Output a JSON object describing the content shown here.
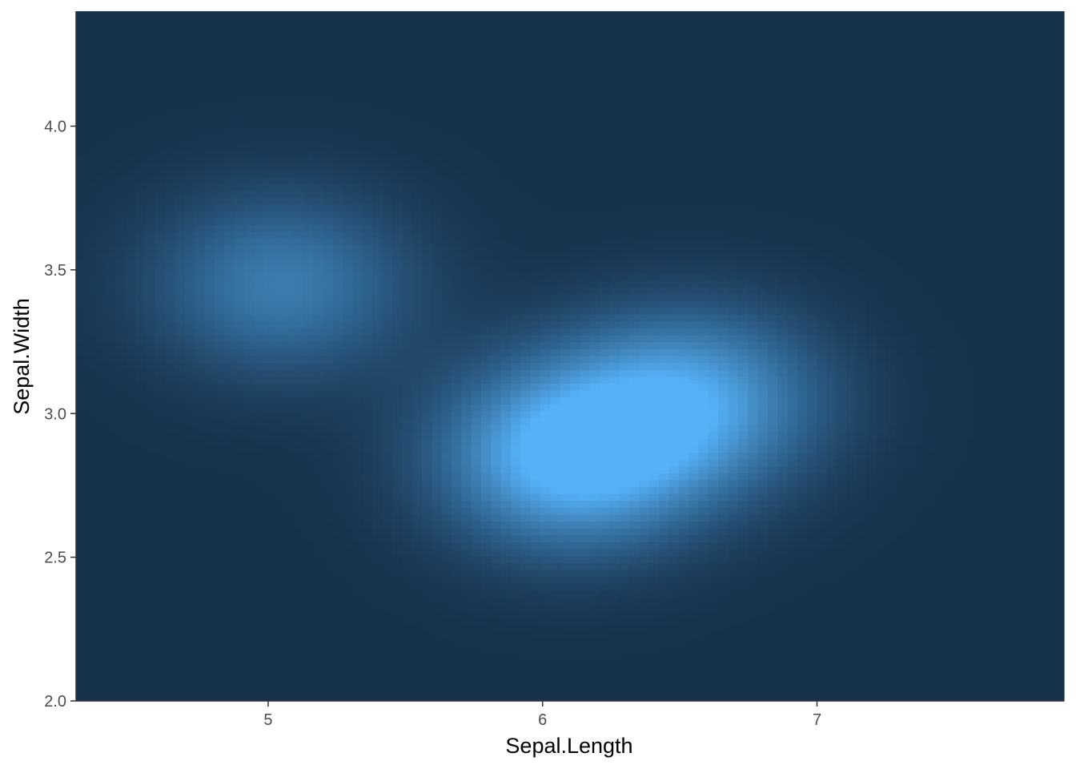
{
  "chart_data": {
    "type": "heatmap",
    "subtype": "2d-density-raster",
    "xlabel": "Sepal.Length",
    "ylabel": "Sepal.Width",
    "xlim": [
      4.3,
      7.9
    ],
    "ylim": [
      2.0,
      4.4
    ],
    "x_ticks": [
      {
        "value": 5,
        "label": "5"
      },
      {
        "value": 6,
        "label": "6"
      },
      {
        "value": 7,
        "label": "7"
      }
    ],
    "y_ticks": [
      {
        "value": 2.0,
        "label": "2.0"
      },
      {
        "value": 2.5,
        "label": "2.5"
      },
      {
        "value": 3.0,
        "label": "3.0"
      },
      {
        "value": 3.5,
        "label": "3.5"
      },
      {
        "value": 4.0,
        "label": "4.0"
      }
    ],
    "grid": false,
    "legend": "none",
    "color_low": "#132b43",
    "color_high": "#56b1f7",
    "density_peaks": [
      {
        "x": 6.1,
        "y": 2.85,
        "level": 1.0
      },
      {
        "x": 6.55,
        "y": 3.05,
        "level": 0.75
      },
      {
        "x": 5.05,
        "y": 3.45,
        "level": 0.55
      }
    ]
  }
}
